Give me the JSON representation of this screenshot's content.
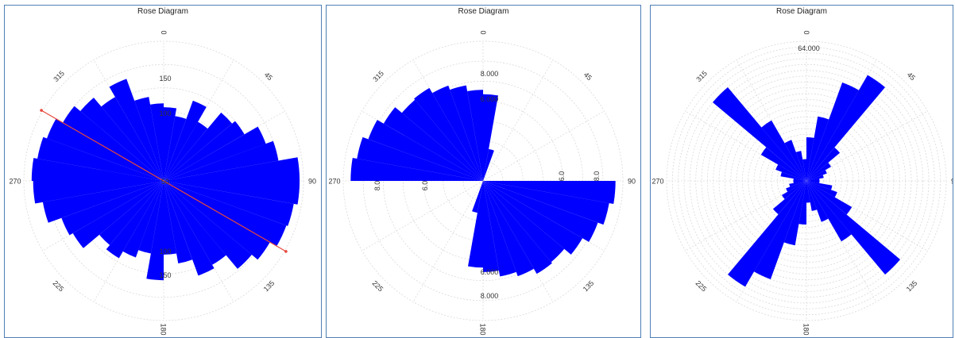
{
  "chart_data": [
    {
      "type": "rose",
      "title": "Rose Diagram",
      "angle_labels": [
        "0",
        "45",
        "90",
        "135",
        "180",
        "225",
        "270",
        "315"
      ],
      "radial_tick_labels": [
        "50",
        "100",
        "150"
      ],
      "rmax": 180,
      "bidirectional": false,
      "bin_width_deg": 10,
      "bin_centers_deg": [
        5,
        15,
        25,
        35,
        45,
        55,
        65,
        75,
        85,
        95,
        105,
        115,
        125,
        135,
        145,
        155,
        165,
        175,
        185,
        195,
        205,
        215,
        225,
        235,
        245,
        255,
        265,
        275,
        285,
        295,
        305,
        315,
        325,
        335,
        345,
        355
      ],
      "values": [
        95,
        85,
        110,
        88,
        115,
        120,
        140,
        150,
        175,
        175,
        170,
        168,
        158,
        148,
        125,
        130,
        108,
        95,
        128,
        95,
        105,
        115,
        108,
        135,
        140,
        158,
        168,
        170,
        165,
        160,
        150,
        140,
        125,
        140,
        110,
        100
      ],
      "mean_direction_line": {
        "azimuth_deg": 120,
        "color": "#e8483a"
      },
      "bar_color": "#0000ff"
    },
    {
      "type": "rose",
      "title": "Rose Diagram",
      "angle_labels": [
        "0",
        "45",
        "90",
        "135",
        "180",
        "225",
        "270",
        "315"
      ],
      "radial_tick_labels": [
        "6.000",
        "8.000",
        "6.0",
        "8.0"
      ],
      "rmax": 9.5,
      "bidirectional": true,
      "bin_width_deg": 10,
      "bin_centers_deg": [
        95,
        105,
        115,
        125,
        135,
        145,
        155,
        165,
        175,
        185,
        195
      ],
      "values": [
        9.0,
        8.7,
        8.3,
        7.8,
        7.2,
        7.3,
        6.9,
        6.6,
        6.2,
        5.9,
        2.2
      ],
      "bar_color": "#0000ff"
    },
    {
      "type": "rose",
      "title": "Rose Diagram",
      "angle_labels": [
        "0",
        "45",
        "90",
        "135",
        "180",
        "225",
        "270",
        "315"
      ],
      "radial_tick_labels": [
        "64.000"
      ],
      "rmax": 64,
      "bidirectional": true,
      "bin_width_deg": 10,
      "bin_centers_deg": [
        5,
        15,
        25,
        35,
        45,
        55,
        65,
        75,
        85,
        95,
        105,
        115,
        125,
        135,
        145,
        155,
        165,
        175
      ],
      "values": [
        20,
        30,
        48,
        56,
        20,
        13,
        10,
        8,
        6,
        6,
        12,
        15,
        24,
        56,
        32,
        20,
        14,
        10
      ],
      "bar_color": "#0000ff"
    }
  ]
}
